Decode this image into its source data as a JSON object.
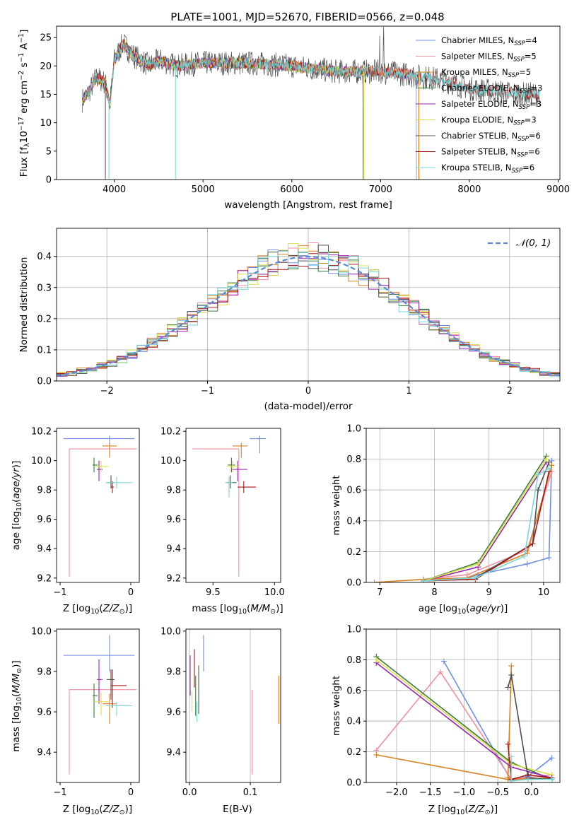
{
  "colors": {
    "chabrier_miles": "#6f8fe8",
    "salpeter_miles": "#ef8fa0",
    "kroupa_miles": "#d8801f",
    "chabrier_elodie": "#3a7a3a",
    "salpeter_elodie": "#9a24b0",
    "kroupa_elodie": "#d8e050",
    "chabrier_stelib": "#505050",
    "salpeter_stelib": "#a81818",
    "kroupa_stelib": "#78d8d8"
  },
  "legend": [
    {
      "key": "chabrier_miles",
      "label": "Chabrier MILES, N",
      "sub": "SSP",
      "suffix": "=4"
    },
    {
      "key": "salpeter_miles",
      "label": "Salpeter MILES, N",
      "sub": "SSP",
      "suffix": "=5"
    },
    {
      "key": "kroupa_miles",
      "label": "Kroupa MILES, N",
      "sub": "SSP",
      "suffix": "=5"
    },
    {
      "key": "chabrier_elodie",
      "label": "Chabrier ELODIE, N",
      "sub": "SSP",
      "suffix": "=3"
    },
    {
      "key": "salpeter_elodie",
      "label": "Salpeter ELODIE, N",
      "sub": "SSP",
      "suffix": "=3"
    },
    {
      "key": "kroupa_elodie",
      "label": "Kroupa ELODIE, N",
      "sub": "SSP",
      "suffix": "=3"
    },
    {
      "key": "chabrier_stelib",
      "label": "Chabrier STELIB, N",
      "sub": "SSP",
      "suffix": "=6"
    },
    {
      "key": "salpeter_stelib",
      "label": "Salpeter STELIB, N",
      "sub": "SSP",
      "suffix": "=6"
    },
    {
      "key": "kroupa_stelib",
      "label": "Kroupa STELIB, N",
      "sub": "SSP",
      "suffix": "=6"
    }
  ],
  "chart_data": [
    {
      "id": "spectrum",
      "type": "line",
      "title": "PLATE=1001, MJD=52670, FIBERID=0566, z=0.048",
      "xlabel": "wavelength [Angstrom, rest frame]",
      "ylabel": "Flux [fλ10⁻¹⁷ erg cm⁻² s⁻¹ A⁻¹]",
      "xlim": [
        3350,
        9020
      ],
      "ylim": [
        0,
        27
      ],
      "xticks": [
        4000,
        5000,
        6000,
        7000,
        8000,
        9000
      ],
      "yticks": [
        0,
        5,
        10,
        15,
        20,
        25
      ],
      "data_x": [
        3640,
        3700,
        3800,
        3900,
        3950,
        4000,
        4100,
        4200,
        4300,
        4400,
        4500,
        4700,
        5000,
        5500,
        6000,
        6500,
        7000,
        7300,
        7500,
        7700,
        8000,
        8300,
        8600,
        8800
      ],
      "data_y": [
        14,
        15,
        18,
        17,
        13,
        21,
        24,
        22,
        21,
        20,
        21,
        20,
        20.5,
        20.5,
        20,
        19,
        19,
        18.5,
        18,
        17.5,
        16,
        15.5,
        15,
        15
      ],
      "dropouts": [
        {
          "series": "kroupa_stelib",
          "x": 3940
        },
        {
          "series": "chabrier_stelib",
          "x": 3900
        },
        {
          "series": "kroupa_stelib",
          "x": 4690
        },
        {
          "series": "kroupa_elodie",
          "x": 6810
        },
        {
          "series": "kroupa_miles",
          "x": 7430
        }
      ]
    },
    {
      "id": "residuals",
      "type": "line",
      "xlabel": "(data-model)/error",
      "ylabel": "Normed distribution",
      "xlim": [
        -2.5,
        2.5
      ],
      "ylim": [
        0,
        0.49
      ],
      "xticks": [
        -2,
        -1,
        0,
        1,
        2
      ],
      "yticks": [
        0.0,
        0.1,
        0.2,
        0.3,
        0.4
      ],
      "grid": true,
      "bin_width": 0.1,
      "reference": {
        "label": "𝒩(0, 1)",
        "style": "dashed",
        "color": "#5b8ad8",
        "mean": 0,
        "sigma": 1
      },
      "legend_placement": "top-right"
    },
    {
      "id": "age_vs_z",
      "type": "scatter",
      "xlabel": "Z [log10(Z/Z⊙)]",
      "ylabel": "age  [log10(age/yr)]",
      "xlim": [
        -1.05,
        0.12
      ],
      "ylim": [
        9.17,
        10.22
      ],
      "xticks": [
        -1,
        0
      ],
      "yticks": [
        9.2,
        9.4,
        9.6,
        9.8,
        10.0,
        10.2
      ],
      "points": [
        {
          "series": "chabrier_miles",
          "x": -0.3,
          "xerr": [
            0.65,
            0.35
          ],
          "y": 10.15,
          "yerr": [
            0.1,
            0.02
          ]
        },
        {
          "series": "salpeter_miles",
          "x": -0.87,
          "xerr": [
            0.0,
            0.95
          ],
          "y": 10.08,
          "yerr": [
            0.87,
            0.0
          ]
        },
        {
          "series": "kroupa_miles",
          "x": -0.3,
          "xerr": [
            0.1,
            0.1
          ],
          "y": 10.1,
          "yerr": [
            0.08,
            0.02
          ]
        },
        {
          "series": "chabrier_elodie",
          "x": -0.52,
          "xerr": [
            0.02,
            0.05
          ],
          "y": 9.97,
          "yerr": [
            0.05,
            0.05
          ]
        },
        {
          "series": "salpeter_elodie",
          "x": -0.45,
          "xerr": [
            0.03,
            0.05
          ],
          "y": 9.94,
          "yerr": [
            0.08,
            0.06
          ]
        },
        {
          "series": "kroupa_elodie",
          "x": -0.42,
          "xerr": [
            0.1,
            0.1
          ],
          "y": 9.96,
          "yerr": [
            0.04,
            0.04
          ]
        },
        {
          "series": "chabrier_stelib",
          "x": -0.28,
          "xerr": [
            0.06,
            0.05
          ],
          "y": 9.85,
          "yerr": [
            0.04,
            0.05
          ]
        },
        {
          "series": "salpeter_stelib",
          "x": -0.26,
          "xerr": [
            0.02,
            0.02
          ],
          "y": 9.82,
          "yerr": [
            0.04,
            0.04
          ]
        },
        {
          "series": "kroupa_stelib",
          "x": -0.2,
          "xerr": [
            0.15,
            0.22
          ],
          "y": 9.85,
          "yerr": [
            0.04,
            0.04
          ]
        }
      ]
    },
    {
      "id": "age_vs_mass",
      "type": "scatter",
      "xlabel": "mass [log10(M/M⊙)]",
      "xlim": [
        9.28,
        10.05
      ],
      "ylim": [
        9.17,
        10.22
      ],
      "xticks": [
        9.5,
        10.0
      ],
      "yticks": [
        9.2,
        9.4,
        9.6,
        9.8,
        10.0,
        10.2
      ],
      "points": [
        {
          "series": "chabrier_miles",
          "x": 9.88,
          "xerr": [
            0.08,
            0.05
          ],
          "y": 10.15,
          "yerr": [
            0.1,
            0.02
          ]
        },
        {
          "series": "salpeter_miles",
          "x": 9.71,
          "xerr": [
            0.38,
            0.0
          ],
          "y": 10.08,
          "yerr": [
            0.87,
            0.0
          ]
        },
        {
          "series": "kroupa_miles",
          "x": 9.73,
          "xerr": [
            0.07,
            0.05
          ],
          "y": 10.1,
          "yerr": [
            0.08,
            0.02
          ]
        },
        {
          "series": "chabrier_elodie",
          "x": 9.65,
          "xerr": [
            0.03,
            0.03
          ],
          "y": 9.97,
          "yerr": [
            0.05,
            0.05
          ]
        },
        {
          "series": "salpeter_elodie",
          "x": 9.7,
          "xerr": [
            0.05,
            0.08
          ],
          "y": 9.94,
          "yerr": [
            0.08,
            0.06
          ]
        },
        {
          "series": "kroupa_elodie",
          "x": 9.66,
          "xerr": [
            0.05,
            0.05
          ],
          "y": 9.96,
          "yerr": [
            0.04,
            0.04
          ]
        },
        {
          "series": "chabrier_stelib",
          "x": 9.64,
          "xerr": [
            0.03,
            0.05
          ],
          "y": 9.85,
          "yerr": [
            0.04,
            0.05
          ]
        },
        {
          "series": "salpeter_stelib",
          "x": 9.75,
          "xerr": [
            0.05,
            0.1
          ],
          "y": 9.82,
          "yerr": [
            0.04,
            0.04
          ]
        },
        {
          "series": "kroupa_stelib",
          "x": 9.63,
          "xerr": [
            0.03,
            0.03
          ],
          "y": 9.85,
          "yerr": [
            0.1,
            0.04
          ]
        }
      ]
    },
    {
      "id": "massweight_vs_age",
      "type": "line",
      "xlabel": "age  [log10(age/yr)]",
      "ylabel": "mass weight",
      "xlim": [
        6.75,
        10.3
      ],
      "ylim": [
        0,
        1.0
      ],
      "xticks": [
        7,
        8,
        9,
        10
      ],
      "yticks": [
        0.0,
        0.2,
        0.4,
        0.6,
        0.8,
        1.0
      ],
      "grid": true,
      "series": [
        {
          "series": "chabrier_miles",
          "x": [
            8.6,
            8.8,
            9.7,
            10.1,
            10.15
          ],
          "y": [
            0.03,
            0.05,
            0.12,
            0.16,
            0.79
          ]
        },
        {
          "series": "salpeter_miles",
          "x": [
            7.8,
            8.6,
            9.7,
            10.15
          ],
          "y": [
            0.02,
            0.05,
            0.21,
            0.72
          ]
        },
        {
          "series": "kroupa_miles",
          "x": [
            6.9,
            7.8,
            8.6,
            9.7,
            10.15
          ],
          "y": [
            0.0,
            0.02,
            0.03,
            0.19,
            0.76
          ]
        },
        {
          "series": "chabrier_elodie",
          "x": [
            7.8,
            8.8,
            10.05
          ],
          "y": [
            0.01,
            0.13,
            0.82
          ]
        },
        {
          "series": "salpeter_elodie",
          "x": [
            7.8,
            8.8,
            10.05
          ],
          "y": [
            0.01,
            0.1,
            0.78
          ]
        },
        {
          "series": "kroupa_elodie",
          "x": [
            7.8,
            8.8,
            10.05
          ],
          "y": [
            0.01,
            0.12,
            0.8
          ]
        },
        {
          "series": "chabrier_stelib",
          "x": [
            7.8,
            8.75,
            9.8,
            9.9,
            10.1
          ],
          "y": [
            0.01,
            0.03,
            0.25,
            0.6,
            0.78
          ]
        },
        {
          "series": "salpeter_stelib",
          "x": [
            7.8,
            8.75,
            9.8,
            10.1
          ],
          "y": [
            0.01,
            0.02,
            0.25,
            0.72
          ]
        },
        {
          "series": "kroupa_stelib",
          "x": [
            7.8,
            8.75,
            9.65,
            9.9,
            10.1
          ],
          "y": [
            0.01,
            0.03,
            0.17,
            0.7,
            0.74
          ]
        }
      ]
    },
    {
      "id": "mass_vs_z",
      "type": "scatter",
      "xlabel": "Z [log10(Z/Z⊙)]",
      "ylabel": "mass [log10(M/M⊙)]",
      "xlim": [
        -1.05,
        0.12
      ],
      "ylim": [
        9.25,
        10.01
      ],
      "xticks": [
        -1,
        0
      ],
      "yticks": [
        9.4,
        9.6,
        9.8,
        10.0
      ],
      "points": [
        {
          "series": "chabrier_miles",
          "x": -0.3,
          "xerr": [
            0.65,
            0.35
          ],
          "y": 9.88,
          "yerr": [
            0.08,
            0.1
          ]
        },
        {
          "series": "salpeter_miles",
          "x": -0.87,
          "xerr": [
            0.0,
            0.95
          ],
          "y": 9.71,
          "yerr": [
            0.42,
            0.0
          ]
        },
        {
          "series": "kroupa_miles",
          "x": -0.3,
          "xerr": [
            0.1,
            0.1
          ],
          "y": 9.64,
          "yerr": [
            0.1,
            0.05
          ]
        },
        {
          "series": "chabrier_elodie",
          "x": -0.52,
          "xerr": [
            0.02,
            0.05
          ],
          "y": 9.68,
          "yerr": [
            0.11,
            0.06
          ]
        },
        {
          "series": "salpeter_elodie",
          "x": -0.45,
          "xerr": [
            0.03,
            0.05
          ],
          "y": 9.76,
          "yerr": [
            0.12,
            0.1
          ]
        },
        {
          "series": "kroupa_elodie",
          "x": -0.42,
          "xerr": [
            0.1,
            0.1
          ],
          "y": 9.65,
          "yerr": [
            0.07,
            0.05
          ]
        },
        {
          "series": "chabrier_stelib",
          "x": -0.28,
          "xerr": [
            0.06,
            0.05
          ],
          "y": 9.76,
          "yerr": [
            0.1,
            0.05
          ]
        },
        {
          "series": "salpeter_stelib",
          "x": -0.26,
          "xerr": [
            0.02,
            0.2
          ],
          "y": 9.73,
          "yerr": [
            0.11,
            0.08
          ]
        },
        {
          "series": "kroupa_stelib",
          "x": -0.2,
          "xerr": [
            0.15,
            0.22
          ],
          "y": 9.63,
          "yerr": [
            0.05,
            0.02
          ]
        }
      ]
    },
    {
      "id": "mass_vs_ebv",
      "type": "scatter",
      "xlabel": "E(B-V)",
      "xlim": [
        -0.006,
        0.15
      ],
      "ylim": [
        9.25,
        10.01
      ],
      "xticks": [
        0.0,
        0.1
      ],
      "yticks": [
        9.4,
        9.6,
        9.8,
        10.0
      ],
      "points": [
        {
          "series": "chabrier_miles",
          "x": 0.023,
          "y": 9.88,
          "yerr": [
            0.08,
            0.1
          ]
        },
        {
          "series": "salpeter_miles",
          "x": 0.103,
          "y": 9.71,
          "yerr": [
            0.42,
            0.0
          ]
        },
        {
          "series": "kroupa_miles",
          "x": 0.147,
          "y": 9.66,
          "yerr": [
            0.12,
            0.12
          ]
        },
        {
          "series": "chabrier_elodie",
          "x": 0.01,
          "y": 9.7,
          "yerr": [
            0.12,
            0.08
          ]
        },
        {
          "series": "salpeter_elodie",
          "x": 0.001,
          "y": 9.78,
          "yerr": [
            0.1,
            0.1
          ]
        },
        {
          "series": "kroupa_elodie",
          "x": 0.004,
          "y": 9.65,
          "yerr": [
            0.05,
            0.05
          ]
        },
        {
          "series": "chabrier_stelib",
          "x": 0.015,
          "y": 9.71,
          "yerr": [
            0.12,
            0.12
          ]
        },
        {
          "series": "salpeter_stelib",
          "x": 0.008,
          "y": 9.82,
          "yerr": [
            0.1,
            0.09
          ]
        },
        {
          "series": "kroupa_stelib",
          "x": 0.012,
          "y": 9.6,
          "yerr": [
            0.05,
            0.05
          ]
        }
      ]
    },
    {
      "id": "massweight_vs_z",
      "type": "line",
      "xlabel": "Z [log10(Z/Z⊙)]",
      "ylabel": "mass weight",
      "xlim": [
        -2.45,
        0.42
      ],
      "ylim": [
        0,
        1.0
      ],
      "xticks": [
        -2.0,
        -1.5,
        -1.0,
        -0.5,
        0.0
      ],
      "yticks": [
        0.0,
        0.2,
        0.4,
        0.6,
        0.8,
        1.0
      ],
      "grid": true,
      "series": [
        {
          "series": "chabrier_miles",
          "x": [
            -1.3,
            -0.3,
            -0.05,
            0.3
          ],
          "y": [
            0.79,
            0.01,
            0.04,
            0.16
          ]
        },
        {
          "series": "salpeter_miles",
          "x": [
            -2.3,
            -1.35,
            -0.3,
            0.3
          ],
          "y": [
            0.21,
            0.72,
            0.02,
            0.05
          ]
        },
        {
          "series": "kroupa_miles",
          "x": [
            -2.3,
            -0.35,
            -0.3,
            -0.35,
            -0.3,
            0.3
          ],
          "y": [
            0.18,
            0.02,
            0.76,
            0.03,
            0.02,
            0.03
          ]
        },
        {
          "series": "chabrier_elodie",
          "x": [
            -2.3,
            -0.3,
            0.3
          ],
          "y": [
            0.82,
            0.13,
            0.02
          ]
        },
        {
          "series": "salpeter_elodie",
          "x": [
            -2.3,
            -0.3,
            0.3
          ],
          "y": [
            0.78,
            0.1,
            0.03
          ]
        },
        {
          "series": "kroupa_elodie",
          "x": [
            -2.3,
            -0.3,
            0.3
          ],
          "y": [
            0.8,
            0.12,
            0.05
          ]
        },
        {
          "series": "chabrier_stelib",
          "x": [
            -0.35,
            -0.3,
            -0.05,
            0.3
          ],
          "y": [
            0.62,
            0.7,
            0.03,
            0.02
          ]
        },
        {
          "series": "salpeter_stelib",
          "x": [
            -0.35,
            -0.3,
            -0.05,
            0.3
          ],
          "y": [
            0.25,
            0.02,
            0.05,
            0.03
          ]
        },
        {
          "series": "kroupa_stelib",
          "x": [
            -0.3,
            -0.3,
            -0.05,
            0.3
          ],
          "y": [
            0.17,
            0.01,
            0.02,
            0.02
          ]
        }
      ]
    }
  ]
}
